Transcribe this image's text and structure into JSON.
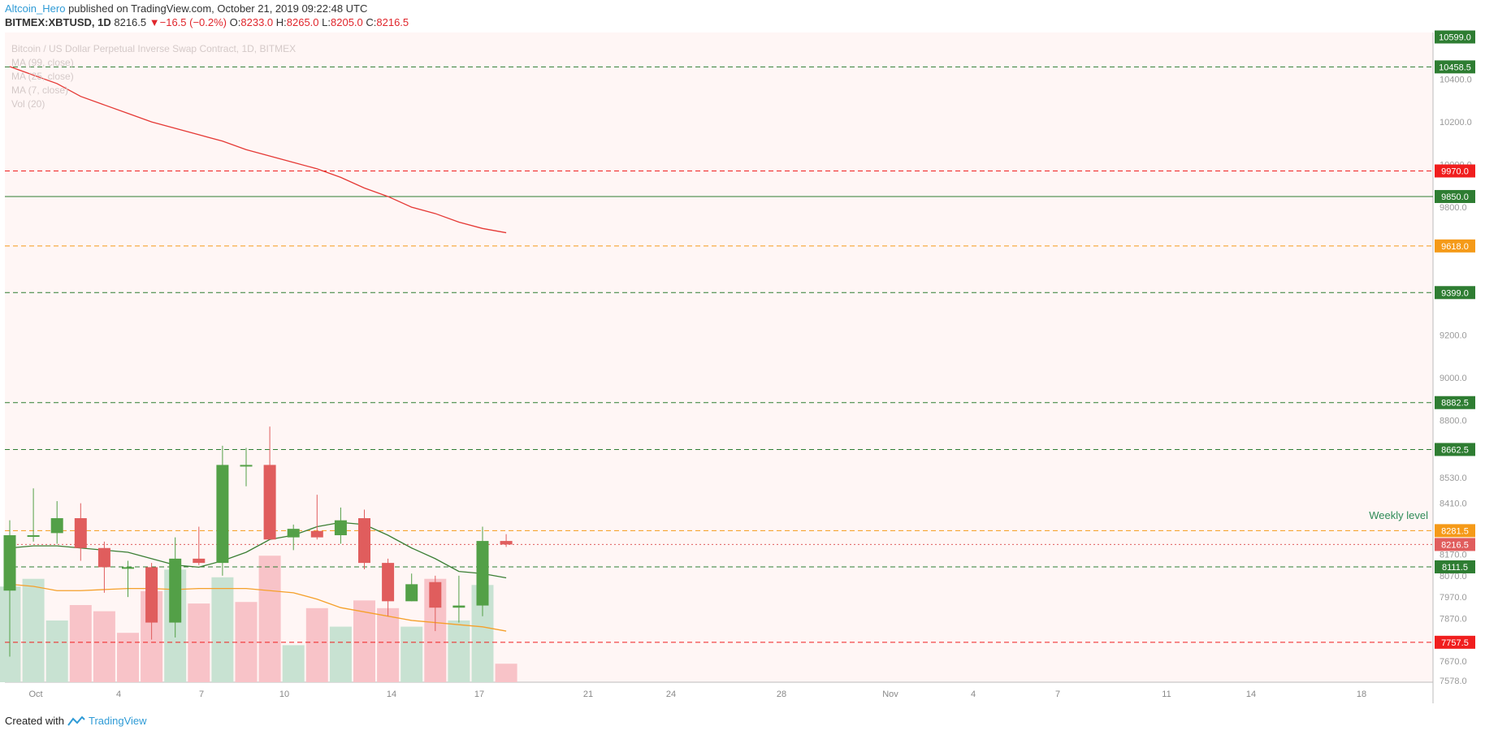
{
  "header": {
    "author": "Altcoin_Hero",
    "published": "published on TradingView.com, October 21, 2019 09:22:48 UTC",
    "symbol": "BITMEX:XBTUSD, 1D",
    "last": "8216.5",
    "change_arrow": "▼",
    "change": "−16.5 (−0.2%)",
    "o_label": "O:",
    "o": "8233.0",
    "h_label": "H:",
    "h": "8265.0",
    "l_label": "L:",
    "l": "8205.0",
    "c_label": "C:",
    "c": "8216.5"
  },
  "legend": {
    "title": "Bitcoin / US Dollar Perpetual Inverse Swap Contract, 1D, BITMEX",
    "ma99": "MA (99, close)",
    "ma25": "MA (25, close)",
    "ma7": "MA (7, close)",
    "vol": "Vol (20)"
  },
  "footer": {
    "created": "Created with",
    "brand": "TradingView",
    "logo_icon": "tradingview-logo-icon"
  },
  "colors": {
    "up": "#53a047",
    "down": "#e05d5d",
    "vol_up": "#c8e2d2",
    "vol_down": "#f8c3c8",
    "ma99": "#e53935",
    "ma25": "#f5a02a",
    "ma7": "#3b7f35",
    "bg": "#fff6f5",
    "level_green": "#2e7d32",
    "level_red": "#f01e1e",
    "level_orange": "#f59a18"
  },
  "chart_data": {
    "type": "candlestick",
    "x_ticks": [
      "Oct",
      "4",
      "7",
      "10",
      "14",
      "17",
      "21",
      "24",
      "28",
      "Nov",
      "4",
      "7",
      "11",
      "14",
      "18"
    ],
    "y_ticks": [
      "10400.0",
      "10200.0",
      "10000.0",
      "9800.0",
      "9200.0",
      "9000.0",
      "8800.0",
      "8530.0",
      "8410.0",
      "8170.0",
      "8070.0",
      "7970.0",
      "7870.0",
      "7670.0",
      "7578.0"
    ],
    "ylim": [
      7570,
      10620
    ],
    "candles": [
      {
        "o": 8000,
        "h": 8330,
        "l": 7690,
        "c": 8260
      },
      {
        "o": 8260,
        "h": 8480,
        "l": 8230,
        "c": 8260
      },
      {
        "o": 8270,
        "h": 8420,
        "l": 8220,
        "c": 8340
      },
      {
        "o": 8340,
        "h": 8410,
        "l": 8140,
        "c": 8200
      },
      {
        "o": 8200,
        "h": 8230,
        "l": 7990,
        "c": 8110
      },
      {
        "o": 8110,
        "h": 8140,
        "l": 7970,
        "c": 8110
      },
      {
        "o": 8110,
        "h": 8130,
        "l": 7770,
        "c": 7850
      },
      {
        "o": 7850,
        "h": 8250,
        "l": 7780,
        "c": 8150
      },
      {
        "o": 8150,
        "h": 8300,
        "l": 8120,
        "c": 8130
      },
      {
        "o": 8130,
        "h": 8680,
        "l": 8070,
        "c": 8590
      },
      {
        "o": 8590,
        "h": 8670,
        "l": 8490,
        "c": 8590
      },
      {
        "o": 8590,
        "h": 8770,
        "l": 8240,
        "c": 8240
      },
      {
        "o": 8250,
        "h": 8310,
        "l": 8190,
        "c": 8290
      },
      {
        "o": 8280,
        "h": 8450,
        "l": 8240,
        "c": 8250
      },
      {
        "o": 8260,
        "h": 8390,
        "l": 8220,
        "c": 8330
      },
      {
        "o": 8340,
        "h": 8380,
        "l": 8100,
        "c": 8130
      },
      {
        "o": 8130,
        "h": 8150,
        "l": 7880,
        "c": 7950
      },
      {
        "o": 7950,
        "h": 8080,
        "l": 7950,
        "c": 8030
      },
      {
        "o": 8040,
        "h": 8070,
        "l": 7810,
        "c": 7920
      },
      {
        "o": 7920,
        "h": 8070,
        "l": 7850,
        "c": 7930
      },
      {
        "o": 7930,
        "h": 8300,
        "l": 7880,
        "c": 8233
      },
      {
        "o": 8233,
        "h": 8265,
        "l": 8205,
        "c": 8216.5
      }
    ],
    "volume_dir": [
      "up",
      "up",
      "up",
      "down",
      "down",
      "down",
      "down",
      "up",
      "down",
      "up",
      "down",
      "down",
      "up",
      "down",
      "up",
      "down",
      "down",
      "up",
      "down",
      "up",
      "up",
      "down"
    ],
    "volume_rel": [
      0.62,
      0.67,
      0.4,
      0.5,
      0.46,
      0.32,
      0.59,
      0.73,
      0.51,
      0.68,
      0.52,
      0.82,
      0.24,
      0.48,
      0.36,
      0.53,
      0.48,
      0.36,
      0.67,
      0.4,
      0.63,
      0.12
    ],
    "ma7": [
      8200,
      8210,
      8210,
      8200,
      8190,
      8180,
      8150,
      8120,
      8110,
      8140,
      8180,
      8240,
      8260,
      8300,
      8320,
      8310,
      8260,
      8200,
      8150,
      8090,
      8080,
      8060
    ],
    "ma25": [
      8030,
      8020,
      8000,
      8000,
      8005,
      8010,
      8010,
      8005,
      8010,
      8010,
      8010,
      8000,
      7990,
      7960,
      7920,
      7900,
      7880,
      7860,
      7850,
      7840,
      7830,
      7810
    ],
    "ma99": [
      10460,
      10420,
      10380,
      10320,
      10280,
      10240,
      10200,
      10170,
      10140,
      10110,
      10070,
      10040,
      10010,
      9980,
      9940,
      9890,
      9850,
      9800,
      9770,
      9730,
      9700,
      9680
    ],
    "levels": [
      {
        "value": "10599.0",
        "price": 10599,
        "color": "green",
        "style": "none"
      },
      {
        "value": "10458.5",
        "price": 10458.5,
        "color": "green",
        "style": "dash"
      },
      {
        "value": "9970.0",
        "price": 9970,
        "color": "red",
        "style": "dash"
      },
      {
        "value": "9850.0",
        "price": 9850,
        "color": "green",
        "style": "solid"
      },
      {
        "value": "9618.0",
        "price": 9618,
        "color": "orange",
        "style": "dash"
      },
      {
        "value": "9399.0",
        "price": 9399,
        "color": "green",
        "style": "dash"
      },
      {
        "value": "8882.5",
        "price": 8882.5,
        "color": "green",
        "style": "dash"
      },
      {
        "value": "8662.5",
        "price": 8662.5,
        "color": "green",
        "style": "dash"
      },
      {
        "value": "8281.5",
        "price": 8281.5,
        "color": "orange",
        "style": "dash"
      },
      {
        "value": "8216.5",
        "price": 8216.5,
        "color": "downlabel",
        "style": "dot"
      },
      {
        "value": "8111.5",
        "price": 8111.5,
        "color": "green",
        "style": "dash"
      },
      {
        "value": "7757.5",
        "price": 7757.5,
        "color": "red",
        "style": "dash"
      }
    ],
    "annotation": "Weekly level"
  }
}
